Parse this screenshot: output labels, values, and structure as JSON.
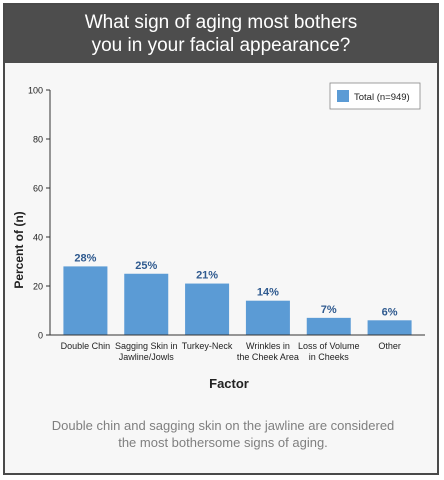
{
  "header": {
    "title": "What sign of aging most bothers you in your facial appearance?"
  },
  "caption": "Double chin and sagging skin on the jawline are considered the most bothersome signs of aging.",
  "colors": {
    "bar": "#5b9bd5",
    "label": "#2f5a8f",
    "header_bg": "#4d4d4d",
    "caption": "#7f7f7f"
  },
  "chart_data": {
    "type": "bar",
    "categories": [
      [
        "Double Chin"
      ],
      [
        "Sagging Skin in",
        "Jawline/Jowls"
      ],
      [
        "Turkey-Neck"
      ],
      [
        "Wrinkles in",
        "the Cheek Area"
      ],
      [
        "Loss of Volume",
        "in Cheeks"
      ],
      [
        "Other"
      ]
    ],
    "series": [
      {
        "name": "Total (n=949)",
        "values": [
          28,
          25,
          21,
          14,
          7,
          6
        ]
      }
    ],
    "data_labels": [
      "28%",
      "25%",
      "21%",
      "14%",
      "7%",
      "6%"
    ],
    "xlabel": "Factor",
    "ylabel": "Percent of (n)",
    "ylim": [
      0,
      100
    ],
    "yticks": [
      0,
      20,
      40,
      60,
      80,
      100
    ],
    "legend_position": "top-right",
    "grid": false
  }
}
